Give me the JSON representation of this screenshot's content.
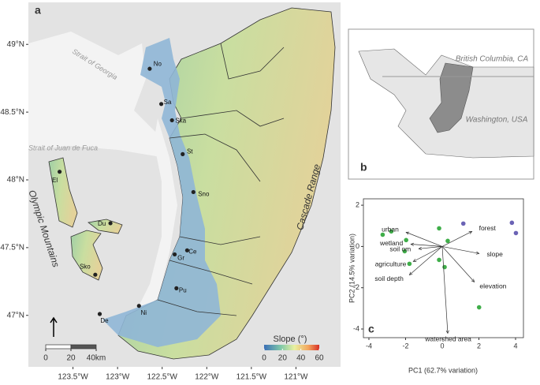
{
  "map_a": {
    "label": "a",
    "xlim": [
      -124.0,
      -120.5
    ],
    "ylim": [
      46.62,
      49.31
    ],
    "xticks": [
      {
        "value": -123.5,
        "label": "123.5°W"
      },
      {
        "value": -123,
        "label": "123°W"
      },
      {
        "value": -122.5,
        "label": "122.5°W"
      },
      {
        "value": -122,
        "label": "122°W"
      },
      {
        "value": -121.5,
        "label": "121.5°W"
      },
      {
        "value": -121,
        "label": "121°W"
      }
    ],
    "yticks": [
      {
        "value": 49,
        "label": "49°N"
      },
      {
        "value": 48.5,
        "label": "48.5°N"
      },
      {
        "value": 48,
        "label": "48°N"
      },
      {
        "value": 47.5,
        "label": "47.5°N"
      },
      {
        "value": 47,
        "label": "47°N"
      }
    ],
    "annotations": [
      "Strait of Georgia",
      "Strait of Juan de Fuca",
      "Olympic Mountains",
      "Cascade Range"
    ],
    "sites": [
      {
        "label": "No",
        "lon": -122.64,
        "lat": 48.82
      },
      {
        "label": "Sa",
        "lon": -122.51,
        "lat": 48.56
      },
      {
        "label": "Ska",
        "lon": -122.39,
        "lat": 48.44
      },
      {
        "label": "St",
        "lon": -122.27,
        "lat": 48.19
      },
      {
        "label": "Sno",
        "lon": -122.15,
        "lat": 47.91
      },
      {
        "label": "El",
        "lon": -123.65,
        "lat": 48.06
      },
      {
        "label": "Du",
        "lon": -123.08,
        "lat": 47.68
      },
      {
        "label": "Sko",
        "lon": -123.25,
        "lat": 47.3
      },
      {
        "label": "Ce",
        "lon": -122.22,
        "lat": 47.48
      },
      {
        "label": "Gr",
        "lon": -122.36,
        "lat": 47.45
      },
      {
        "label": "Pu",
        "lon": -122.34,
        "lat": 47.2
      },
      {
        "label": "Ni",
        "lon": -122.76,
        "lat": 47.07
      },
      {
        "label": "De",
        "lon": -123.2,
        "lat": 47.01
      }
    ],
    "legend": {
      "title": "Slope (°)",
      "lim": [
        0,
        60
      ],
      "ticks": [
        0,
        20,
        40,
        60
      ]
    },
    "scale_bar": {
      "ticks": [
        0,
        20,
        {
          "value": 40,
          "label": "40km"
        }
      ]
    }
  },
  "map_b": {
    "label": "b",
    "regions": [
      "British Columbia, CA",
      "Washington, USA"
    ]
  },
  "chart_data": {
    "type": "scatter",
    "label": "c",
    "x_label": "PC1 (62.7% variation)",
    "y_label": "PC2 (14.5% variation)",
    "xlim": [
      -4.3,
      4.43
    ],
    "ylim": [
      -4.42,
      2.31
    ],
    "xticks": [
      -4,
      -2,
      0,
      2,
      4
    ],
    "yticks": [
      -4,
      -2,
      0,
      2
    ],
    "series": [
      {
        "color": "#3fae49",
        "x": [
          -3.25,
          -2.78,
          -1.97,
          -2.05,
          -1.79,
          -0.17,
          0.3,
          -0.17,
          0.13,
          2.01
        ],
        "values": [
          0.57,
          0.73,
          0.31,
          -0.23,
          -0.84,
          0.88,
          0.27,
          -0.65,
          -1.0,
          -2.95
        ]
      },
      {
        "color": "#6b63b5",
        "x": [
          1.15,
          3.8,
          4.02
        ],
        "values": [
          1.11,
          1.15,
          0.65
        ]
      }
    ],
    "loadings": [
      {
        "name": "urban",
        "x": -1.97,
        "y": 0.69
      },
      {
        "name": "forest",
        "x": 1.62,
        "y": 0.73
      },
      {
        "name": "wetland",
        "x": -1.71,
        "y": 0.11
      },
      {
        "name": "soil om",
        "x": -1.28,
        "y": -0.11
      },
      {
        "name": "slope",
        "x": 2.01,
        "y": -0.34
      },
      {
        "name": "agriculture",
        "x": -1.58,
        "y": -0.73
      },
      {
        "name": "soil depth",
        "x": -1.79,
        "y": -1.38
      },
      {
        "name": "elevation",
        "x": 1.75,
        "y": -1.72
      },
      {
        "name": "watershed area",
        "x": 0.3,
        "y": -4.21
      }
    ]
  }
}
